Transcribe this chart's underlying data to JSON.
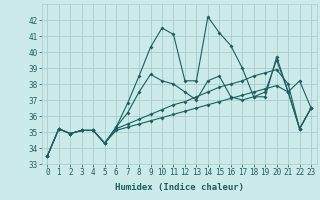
{
  "background_color": "#cceaea",
  "grid_color": "#aacccc",
  "line_color": "#1a6060",
  "xlabel": "Humidex (Indice chaleur)",
  "ylim": [
    33,
    43
  ],
  "xlim": [
    -0.5,
    23.5
  ],
  "yticks": [
    33,
    34,
    35,
    36,
    37,
    38,
    39,
    40,
    41,
    42
  ],
  "xticks": [
    0,
    1,
    2,
    3,
    4,
    5,
    6,
    7,
    8,
    9,
    10,
    11,
    12,
    13,
    14,
    15,
    16,
    17,
    18,
    19,
    20,
    21,
    22,
    23
  ],
  "series": [
    {
      "x": [
        0,
        1,
        2,
        3,
        4,
        5,
        6,
        7,
        8,
        9,
        10,
        11,
        12,
        13,
        14,
        15,
        16,
        17,
        18,
        19,
        20,
        21,
        22,
        23
      ],
      "y": [
        33.5,
        35.2,
        34.9,
        35.1,
        35.1,
        34.3,
        35.3,
        36.8,
        38.5,
        40.3,
        41.5,
        41.1,
        38.2,
        38.2,
        42.2,
        41.2,
        40.4,
        39.0,
        37.2,
        37.2,
        39.7,
        37.5,
        38.2,
        36.5
      ]
    },
    {
      "x": [
        0,
        1,
        2,
        3,
        4,
        5,
        6,
        7,
        8,
        9,
        10,
        11,
        12,
        13,
        14,
        15,
        16,
        17,
        18,
        19,
        20,
        21,
        22,
        23
      ],
      "y": [
        33.5,
        35.2,
        34.9,
        35.1,
        35.1,
        34.3,
        35.2,
        35.5,
        35.8,
        36.1,
        36.4,
        36.7,
        36.9,
        37.2,
        37.5,
        37.8,
        38.0,
        38.2,
        38.5,
        38.7,
        38.9,
        38.0,
        35.2,
        36.5
      ]
    },
    {
      "x": [
        0,
        1,
        2,
        3,
        4,
        5,
        6,
        7,
        8,
        9,
        10,
        11,
        12,
        13,
        14,
        15,
        16,
        17,
        18,
        19,
        20,
        21,
        22,
        23
      ],
      "y": [
        33.5,
        35.2,
        34.9,
        35.1,
        35.1,
        34.3,
        35.1,
        35.3,
        35.5,
        35.7,
        35.9,
        36.1,
        36.3,
        36.5,
        36.7,
        36.9,
        37.1,
        37.3,
        37.5,
        37.7,
        37.9,
        37.5,
        35.2,
        36.5
      ]
    },
    {
      "x": [
        0,
        1,
        2,
        3,
        4,
        5,
        6,
        7,
        8,
        9,
        10,
        11,
        12,
        13,
        14,
        15,
        16,
        17,
        18,
        19,
        20,
        21,
        22,
        23
      ],
      "y": [
        33.5,
        35.2,
        34.9,
        35.1,
        35.1,
        34.3,
        35.3,
        36.2,
        37.5,
        38.6,
        38.2,
        38.0,
        37.5,
        37.0,
        38.2,
        38.5,
        37.2,
        37.0,
        37.2,
        37.5,
        39.5,
        37.5,
        35.2,
        36.5
      ]
    }
  ]
}
